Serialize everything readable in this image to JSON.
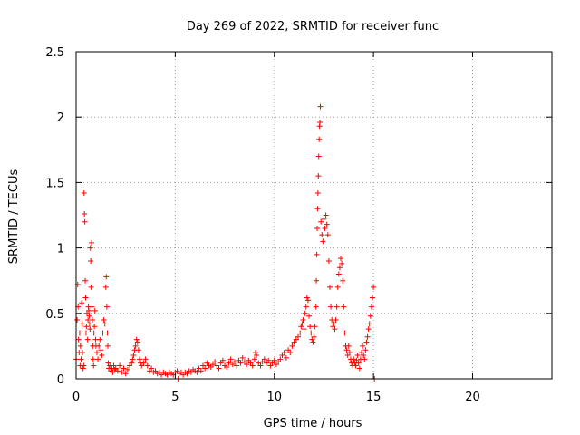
{
  "chart_data": {
    "type": "scatter",
    "title": "Day 269 of 2022, SRMTID for receiver func",
    "xlabel": "GPS time / hours",
    "ylabel": "SRMTID / TECUs",
    "xlim": [
      0,
      24
    ],
    "ylim": [
      0,
      2.5
    ],
    "xticks": [
      0,
      5,
      10,
      15,
      20
    ],
    "xtick_labels": [
      "0",
      "5",
      "10",
      "15",
      "20"
    ],
    "yticks": [
      0,
      0.5,
      1,
      1.5,
      2,
      2.5
    ],
    "ytick_labels": [
      "0",
      "0.5",
      "1",
      "1.5",
      "2",
      "2.5"
    ],
    "grid": true,
    "marker": "+",
    "color": "#ff0000",
    "series": [
      {
        "name": "SRMTID",
        "points": [
          [
            0.0,
            0.15
          ],
          [
            0.05,
            0.45
          ],
          [
            0.08,
            0.72
          ],
          [
            0.1,
            0.55
          ],
          [
            0.12,
            0.3
          ],
          [
            0.15,
            0.2
          ],
          [
            0.18,
            0.35
          ],
          [
            0.2,
            0.1
          ],
          [
            0.22,
            0.25
          ],
          [
            0.25,
            0.15
          ],
          [
            0.28,
            0.58
          ],
          [
            0.3,
            0.42
          ],
          [
            0.32,
            0.2
          ],
          [
            0.35,
            0.08
          ],
          [
            0.38,
            0.1
          ],
          [
            0.4,
            1.42
          ],
          [
            0.42,
            1.26
          ],
          [
            0.44,
            1.2
          ],
          [
            0.46,
            0.75
          ],
          [
            0.48,
            0.62
          ],
          [
            0.5,
            0.35
          ],
          [
            0.52,
            0.4
          ],
          [
            0.55,
            0.5
          ],
          [
            0.58,
            0.3
          ],
          [
            0.6,
            0.45
          ],
          [
            0.62,
            0.55
          ],
          [
            0.64,
            0.52
          ],
          [
            0.66,
            0.48
          ],
          [
            0.68,
            0.42
          ],
          [
            0.7,
            0.38
          ],
          [
            0.72,
            1.0
          ],
          [
            0.74,
            0.9
          ],
          [
            0.76,
            0.7
          ],
          [
            0.78,
            1.04
          ],
          [
            0.8,
            0.55
          ],
          [
            0.82,
            0.45
          ],
          [
            0.84,
            0.25
          ],
          [
            0.86,
            0.15
          ],
          [
            0.88,
            0.1
          ],
          [
            0.9,
            0.35
          ],
          [
            0.92,
            0.4
          ],
          [
            0.95,
            0.52
          ],
          [
            0.98,
            0.3
          ],
          [
            1.0,
            0.25
          ],
          [
            1.05,
            0.2
          ],
          [
            1.1,
            0.15
          ],
          [
            1.15,
            0.25
          ],
          [
            1.2,
            0.3
          ],
          [
            1.25,
            0.22
          ],
          [
            1.3,
            0.18
          ],
          [
            1.35,
            0.35
          ],
          [
            1.4,
            0.45
          ],
          [
            1.45,
            0.42
          ],
          [
            1.5,
            0.7
          ],
          [
            1.52,
            0.78
          ],
          [
            1.55,
            0.55
          ],
          [
            1.58,
            0.35
          ],
          [
            1.6,
            0.25
          ],
          [
            1.62,
            0.12
          ],
          [
            1.65,
            0.08
          ],
          [
            1.7,
            0.1
          ],
          [
            1.75,
            0.06
          ],
          [
            1.8,
            0.08
          ],
          [
            1.85,
            0.05
          ],
          [
            1.9,
            0.1
          ],
          [
            1.95,
            0.07
          ],
          [
            2.0,
            0.08
          ],
          [
            2.1,
            0.06
          ],
          [
            2.2,
            0.1
          ],
          [
            2.3,
            0.05
          ],
          [
            2.4,
            0.08
          ],
          [
            2.5,
            0.04
          ],
          [
            2.6,
            0.07
          ],
          [
            2.7,
            0.1
          ],
          [
            2.8,
            0.12
          ],
          [
            2.85,
            0.15
          ],
          [
            2.9,
            0.18
          ],
          [
            2.95,
            0.22
          ],
          [
            3.0,
            0.25
          ],
          [
            3.05,
            0.3
          ],
          [
            3.1,
            0.28
          ],
          [
            3.15,
            0.22
          ],
          [
            3.2,
            0.15
          ],
          [
            3.25,
            0.12
          ],
          [
            3.3,
            0.1
          ],
          [
            3.4,
            0.12
          ],
          [
            3.5,
            0.15
          ],
          [
            3.6,
            0.1
          ],
          [
            3.7,
            0.06
          ],
          [
            3.8,
            0.08
          ],
          [
            3.9,
            0.05
          ],
          [
            4.0,
            0.06
          ],
          [
            4.1,
            0.04
          ],
          [
            4.2,
            0.05
          ],
          [
            4.3,
            0.03
          ],
          [
            4.4,
            0.05
          ],
          [
            4.5,
            0.04
          ],
          [
            4.6,
            0.03
          ],
          [
            4.7,
            0.05
          ],
          [
            4.8,
            0.04
          ],
          [
            4.9,
            0.03
          ],
          [
            5.0,
            0.05
          ],
          [
            5.1,
            0.06
          ],
          [
            5.15,
            0.0
          ],
          [
            5.2,
            0.04
          ],
          [
            5.3,
            0.05
          ],
          [
            5.4,
            0.03
          ],
          [
            5.5,
            0.05
          ],
          [
            5.6,
            0.04
          ],
          [
            5.7,
            0.06
          ],
          [
            5.8,
            0.05
          ],
          [
            5.9,
            0.07
          ],
          [
            6.0,
            0.06
          ],
          [
            6.1,
            0.05
          ],
          [
            6.2,
            0.08
          ],
          [
            6.3,
            0.06
          ],
          [
            6.4,
            0.1
          ],
          [
            6.5,
            0.08
          ],
          [
            6.6,
            0.12
          ],
          [
            6.7,
            0.1
          ],
          [
            6.8,
            0.09
          ],
          [
            6.9,
            0.11
          ],
          [
            7.0,
            0.13
          ],
          [
            7.1,
            0.1
          ],
          [
            7.2,
            0.08
          ],
          [
            7.3,
            0.12
          ],
          [
            7.4,
            0.14
          ],
          [
            7.5,
            0.1
          ],
          [
            7.6,
            0.09
          ],
          [
            7.7,
            0.12
          ],
          [
            7.8,
            0.15
          ],
          [
            7.9,
            0.11
          ],
          [
            8.0,
            0.13
          ],
          [
            8.1,
            0.1
          ],
          [
            8.2,
            0.14
          ],
          [
            8.3,
            0.12
          ],
          [
            8.4,
            0.16
          ],
          [
            8.5,
            0.13
          ],
          [
            8.6,
            0.11
          ],
          [
            8.7,
            0.14
          ],
          [
            8.8,
            0.12
          ],
          [
            8.9,
            0.1
          ],
          [
            9.0,
            0.15
          ],
          [
            9.05,
            0.2
          ],
          [
            9.1,
            0.18
          ],
          [
            9.2,
            0.12
          ],
          [
            9.3,
            0.1
          ],
          [
            9.4,
            0.13
          ],
          [
            9.5,
            0.15
          ],
          [
            9.6,
            0.12
          ],
          [
            9.7,
            0.14
          ],
          [
            9.8,
            0.1
          ],
          [
            9.9,
            0.12
          ],
          [
            10.0,
            0.14
          ],
          [
            10.1,
            0.11
          ],
          [
            10.2,
            0.13
          ],
          [
            10.3,
            0.15
          ],
          [
            10.4,
            0.18
          ],
          [
            10.5,
            0.2
          ],
          [
            10.6,
            0.16
          ],
          [
            10.7,
            0.22
          ],
          [
            10.8,
            0.2
          ],
          [
            10.9,
            0.25
          ],
          [
            11.0,
            0.28
          ],
          [
            11.1,
            0.3
          ],
          [
            11.2,
            0.32
          ],
          [
            11.3,
            0.35
          ],
          [
            11.35,
            0.4
          ],
          [
            11.4,
            0.42
          ],
          [
            11.45,
            0.45
          ],
          [
            11.5,
            0.38
          ],
          [
            11.55,
            0.5
          ],
          [
            11.6,
            0.55
          ],
          [
            11.65,
            0.62
          ],
          [
            11.7,
            0.6
          ],
          [
            11.75,
            0.48
          ],
          [
            11.8,
            0.4
          ],
          [
            11.85,
            0.35
          ],
          [
            11.9,
            0.3
          ],
          [
            11.95,
            0.28
          ],
          [
            12.0,
            0.32
          ],
          [
            12.05,
            0.4
          ],
          [
            12.1,
            0.55
          ],
          [
            12.12,
            0.75
          ],
          [
            12.14,
            0.95
          ],
          [
            12.16,
            1.15
          ],
          [
            12.18,
            1.3
          ],
          [
            12.2,
            1.42
          ],
          [
            12.22,
            1.55
          ],
          [
            12.24,
            1.7
          ],
          [
            12.26,
            1.83
          ],
          [
            12.28,
            1.93
          ],
          [
            12.3,
            1.96
          ],
          [
            12.32,
            2.08
          ],
          [
            12.35,
            1.2
          ],
          [
            12.4,
            1.1
          ],
          [
            12.45,
            1.05
          ],
          [
            12.5,
            1.22
          ],
          [
            12.55,
            1.15
          ],
          [
            12.6,
            1.25
          ],
          [
            12.65,
            1.18
          ],
          [
            12.7,
            1.1
          ],
          [
            12.75,
            0.9
          ],
          [
            12.8,
            0.7
          ],
          [
            12.85,
            0.55
          ],
          [
            12.9,
            0.45
          ],
          [
            12.95,
            0.4
          ],
          [
            13.0,
            0.42
          ],
          [
            13.05,
            0.38
          ],
          [
            13.1,
            0.45
          ],
          [
            13.15,
            0.55
          ],
          [
            13.2,
            0.7
          ],
          [
            13.25,
            0.8
          ],
          [
            13.3,
            0.85
          ],
          [
            13.35,
            0.92
          ],
          [
            13.4,
            0.88
          ],
          [
            13.45,
            0.75
          ],
          [
            13.5,
            0.55
          ],
          [
            13.55,
            0.35
          ],
          [
            13.6,
            0.25
          ],
          [
            13.65,
            0.22
          ],
          [
            13.7,
            0.18
          ],
          [
            13.75,
            0.25
          ],
          [
            13.8,
            0.2
          ],
          [
            13.85,
            0.15
          ],
          [
            13.9,
            0.12
          ],
          [
            13.95,
            0.1
          ],
          [
            14.0,
            0.15
          ],
          [
            14.05,
            0.12
          ],
          [
            14.1,
            0.1
          ],
          [
            14.15,
            0.14
          ],
          [
            14.2,
            0.18
          ],
          [
            14.25,
            0.12
          ],
          [
            14.3,
            0.08
          ],
          [
            14.35,
            0.15
          ],
          [
            14.4,
            0.2
          ],
          [
            14.45,
            0.25
          ],
          [
            14.5,
            0.18
          ],
          [
            14.55,
            0.15
          ],
          [
            14.6,
            0.22
          ],
          [
            14.65,
            0.28
          ],
          [
            14.7,
            0.32
          ],
          [
            14.75,
            0.38
          ],
          [
            14.8,
            0.42
          ],
          [
            14.85,
            0.48
          ],
          [
            14.9,
            0.55
          ],
          [
            14.95,
            0.62
          ],
          [
            15.0,
            0.7
          ],
          [
            15.05,
            0.0
          ]
        ]
      }
    ]
  }
}
